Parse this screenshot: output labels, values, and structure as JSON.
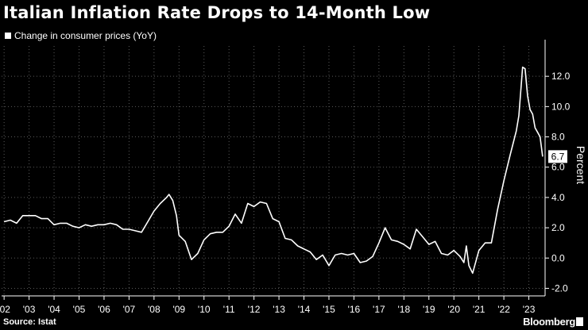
{
  "header": {
    "title": "Italian Inflation Rate Drops to 14-Month Low",
    "legend_label": "Change in consumer prices (YoY)"
  },
  "footer": {
    "source": "Source: Istat",
    "brand": "Bloomberg"
  },
  "colors": {
    "background": "#000000",
    "line": "#ffffff",
    "grid": "#5a5a5a"
  },
  "chart_data": {
    "type": "line",
    "title": "Italian Inflation Rate Drops to 14-Month Low",
    "series_name": "Change in consumer prices (YoY)",
    "ylabel": "Percent",
    "xlabel": "",
    "ylim": [
      -2.5,
      14
    ],
    "y_ticks": [
      -2.0,
      0.0,
      2.0,
      4.0,
      6.0,
      8.0,
      10.0,
      12.0
    ],
    "y_tick_labels": [
      "-2.0",
      "0.0",
      "2.0",
      "4.0",
      "6.0",
      "8.0",
      "10.0",
      "12.0"
    ],
    "x_range": [
      2001.9,
      2023.65
    ],
    "x_ticks": [
      2002,
      2003,
      2004,
      2005,
      2006,
      2007,
      2008,
      2009,
      2010,
      2011,
      2012,
      2013,
      2014,
      2015,
      2016,
      2017,
      2018,
      2019,
      2020,
      2021,
      2022,
      2023
    ],
    "x_tick_labels": [
      "'02",
      "'03",
      "'04",
      "'05",
      "'06",
      "'07",
      "'08",
      "'09",
      "'10",
      "'11",
      "'12",
      "'13",
      "'14",
      "'15",
      "'16",
      "'17",
      "'18",
      "'19",
      "'20",
      "'21",
      "'22",
      "'23"
    ],
    "last_value_label": "6.7",
    "grid": true,
    "points": [
      [
        2002.0,
        2.4
      ],
      [
        2002.25,
        2.5
      ],
      [
        2002.5,
        2.3
      ],
      [
        2002.75,
        2.8
      ],
      [
        2003.0,
        2.8
      ],
      [
        2003.25,
        2.8
      ],
      [
        2003.5,
        2.6
      ],
      [
        2003.75,
        2.6
      ],
      [
        2004.0,
        2.2
      ],
      [
        2004.25,
        2.3
      ],
      [
        2004.5,
        2.3
      ],
      [
        2004.75,
        2.1
      ],
      [
        2005.0,
        2.0
      ],
      [
        2005.25,
        2.2
      ],
      [
        2005.5,
        2.1
      ],
      [
        2005.75,
        2.2
      ],
      [
        2006.0,
        2.2
      ],
      [
        2006.25,
        2.3
      ],
      [
        2006.5,
        2.2
      ],
      [
        2006.75,
        1.9
      ],
      [
        2007.0,
        1.9
      ],
      [
        2007.25,
        1.8
      ],
      [
        2007.5,
        1.7
      ],
      [
        2007.75,
        2.4
      ],
      [
        2008.0,
        3.1
      ],
      [
        2008.25,
        3.6
      ],
      [
        2008.5,
        4.0
      ],
      [
        2008.6,
        4.2
      ],
      [
        2008.75,
        3.8
      ],
      [
        2008.9,
        2.8
      ],
      [
        2009.0,
        1.5
      ],
      [
        2009.25,
        1.1
      ],
      [
        2009.5,
        -0.1
      ],
      [
        2009.75,
        0.3
      ],
      [
        2010.0,
        1.2
      ],
      [
        2010.25,
        1.6
      ],
      [
        2010.5,
        1.7
      ],
      [
        2010.75,
        1.7
      ],
      [
        2011.0,
        2.1
      ],
      [
        2011.25,
        2.9
      ],
      [
        2011.5,
        2.3
      ],
      [
        2011.75,
        3.6
      ],
      [
        2012.0,
        3.4
      ],
      [
        2012.25,
        3.7
      ],
      [
        2012.5,
        3.6
      ],
      [
        2012.75,
        2.6
      ],
      [
        2013.0,
        2.4
      ],
      [
        2013.25,
        1.3
      ],
      [
        2013.5,
        1.2
      ],
      [
        2013.75,
        0.8
      ],
      [
        2014.0,
        0.6
      ],
      [
        2014.25,
        0.4
      ],
      [
        2014.5,
        -0.1
      ],
      [
        2014.75,
        0.2
      ],
      [
        2015.0,
        -0.5
      ],
      [
        2015.25,
        0.2
      ],
      [
        2015.5,
        0.3
      ],
      [
        2015.75,
        0.2
      ],
      [
        2016.0,
        0.3
      ],
      [
        2016.25,
        -0.3
      ],
      [
        2016.5,
        -0.2
      ],
      [
        2016.75,
        0.1
      ],
      [
        2017.0,
        1.0
      ],
      [
        2017.25,
        2.0
      ],
      [
        2017.5,
        1.2
      ],
      [
        2017.75,
        1.1
      ],
      [
        2018.0,
        0.9
      ],
      [
        2018.25,
        0.6
      ],
      [
        2018.5,
        1.9
      ],
      [
        2018.75,
        1.4
      ],
      [
        2019.0,
        0.9
      ],
      [
        2019.25,
        1.1
      ],
      [
        2019.5,
        0.3
      ],
      [
        2019.75,
        0.2
      ],
      [
        2020.0,
        0.5
      ],
      [
        2020.25,
        0.1
      ],
      [
        2020.4,
        -0.3
      ],
      [
        2020.5,
        0.8
      ],
      [
        2020.6,
        -0.5
      ],
      [
        2020.75,
        -1.0
      ],
      [
        2021.0,
        0.5
      ],
      [
        2021.25,
        1.0
      ],
      [
        2021.5,
        1.0
      ],
      [
        2021.75,
        3.2
      ],
      [
        2022.0,
        5.1
      ],
      [
        2022.25,
        6.8
      ],
      [
        2022.5,
        8.4
      ],
      [
        2022.6,
        9.4
      ],
      [
        2022.75,
        12.6
      ],
      [
        2022.85,
        12.5
      ],
      [
        2022.95,
        10.7
      ],
      [
        2023.05,
        9.8
      ],
      [
        2023.15,
        9.5
      ],
      [
        2023.25,
        8.6
      ],
      [
        2023.35,
        8.3
      ],
      [
        2023.45,
        8.0
      ],
      [
        2023.55,
        6.7
      ]
    ]
  }
}
